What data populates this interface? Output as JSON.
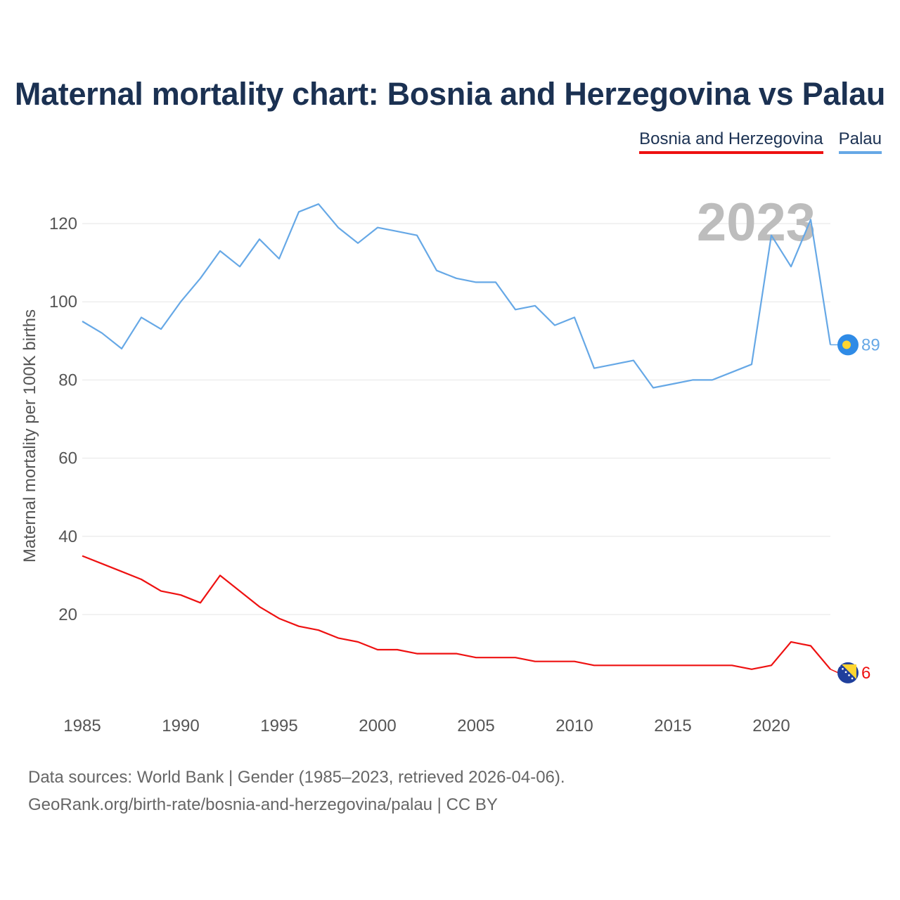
{
  "title": "Maternal mortality chart: Bosnia and Herzegovina vs Palau",
  "legend": {
    "bih": "Bosnia and Herzegovina",
    "palau": "Palau"
  },
  "colors": {
    "bih": "#ee1111",
    "palau": "#66a8e6",
    "title": "#1b3152",
    "grid": "#e6e6e6",
    "watermark": "#bdbdbd"
  },
  "chart_data": {
    "type": "line",
    "title": "Maternal mortality chart: Bosnia and Herzegovina vs Palau",
    "xlabel": "",
    "ylabel": "Maternal mortality per 100K births",
    "xlim": [
      1985,
      2023
    ],
    "ylim": [
      0,
      130
    ],
    "x_ticks": [
      1985,
      1990,
      1995,
      2000,
      2005,
      2010,
      2015,
      2020
    ],
    "y_ticks": [
      20,
      40,
      60,
      80,
      100,
      120
    ],
    "grid": true,
    "legend_position": "top-right",
    "year_label": "2023",
    "x": [
      1985,
      1986,
      1987,
      1988,
      1989,
      1990,
      1991,
      1992,
      1993,
      1994,
      1995,
      1996,
      1997,
      1998,
      1999,
      2000,
      2001,
      2002,
      2003,
      2004,
      2005,
      2006,
      2007,
      2008,
      2009,
      2010,
      2011,
      2012,
      2013,
      2014,
      2015,
      2016,
      2017,
      2018,
      2019,
      2020,
      2021,
      2022,
      2023
    ],
    "series": [
      {
        "key": "palau",
        "name": "Palau",
        "end_label": "89",
        "values": [
          95,
          92,
          88,
          96,
          93,
          100,
          106,
          113,
          109,
          116,
          111,
          123,
          125,
          119,
          115,
          119,
          118,
          117,
          108,
          106,
          105,
          105,
          98,
          99,
          94,
          96,
          83,
          84,
          85,
          78,
          79,
          80,
          80,
          82,
          84,
          117,
          109,
          121,
          89
        ]
      },
      {
        "key": "bih",
        "name": "Bosnia and Herzegovina",
        "end_label": "6",
        "values": [
          35,
          33,
          31,
          29,
          26,
          25,
          23,
          30,
          26,
          22,
          19,
          17,
          16,
          14,
          13,
          11,
          11,
          10,
          10,
          10,
          9,
          9,
          9,
          8,
          8,
          8,
          7,
          7,
          7,
          7,
          7,
          7,
          7,
          7,
          6,
          7,
          13,
          12,
          6
        ]
      }
    ]
  },
  "source": {
    "line1": "Data sources: World Bank | Gender (1985–2023, retrieved 2026-04-06).",
    "line2": "GeoRank.org/birth-rate/bosnia-and-herzegovina/palau | CC BY"
  }
}
